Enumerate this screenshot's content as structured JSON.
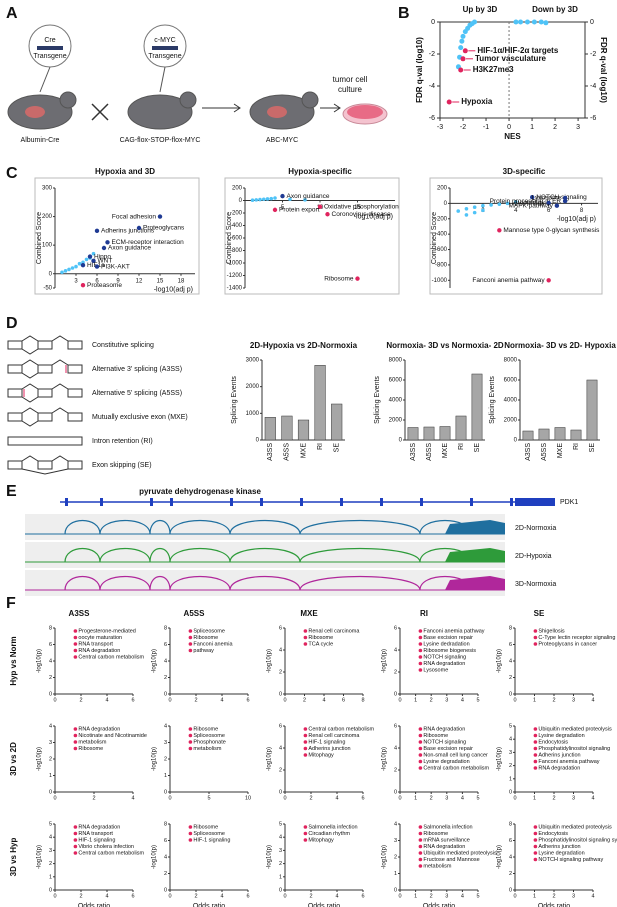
{
  "panel_a": {
    "letter": "A",
    "cre_title": "Cre",
    "cre_sub": "Transgene",
    "myc_title": "c-MYC",
    "myc_sub": "Transgene",
    "mouse1": "Albumin-Cre",
    "mouse2": "CAG-flox-STOP-flox-MYC",
    "mouse3": "ABC-MYC",
    "culture1": "tumor cell",
    "culture2": "culture"
  },
  "panel_b": {
    "letter": "B",
    "left_title": "Up by 3D",
    "right_title": "Down by 3D",
    "y_label": "FDR q-val (log10)",
    "y2_label": "FDR q-val (log10)",
    "x_label": "NES",
    "xlim": [
      -3,
      3.3
    ],
    "xticks": [
      -3,
      -2,
      -1,
      0,
      1,
      2,
      3
    ],
    "ylim": [
      -6,
      0
    ],
    "yticks": [
      0,
      -2,
      -4,
      -6
    ],
    "y2ticks": [
      0,
      -2,
      -4,
      -6
    ],
    "points_x": [
      -1.5,
      -1.6,
      -1.7,
      -1.8,
      -1.9,
      -2.0,
      -2.05,
      -2.1,
      -2.15,
      -2.2,
      0.3,
      0.5,
      0.8,
      1.1,
      1.4,
      1.6
    ],
    "points_y": [
      0,
      -0.1,
      -0.2,
      -0.4,
      -0.6,
      -0.9,
      -1.2,
      -1.6,
      -2.2,
      -2.8,
      0,
      0,
      0,
      0,
      0,
      -0.05
    ],
    "highlights": [
      {
        "label": "HIF-1α/HIF-2α targets",
        "x": -1.9,
        "y": -1.8
      },
      {
        "label": "Tumor vasculature",
        "x": -2.0,
        "y": -2.3
      },
      {
        "label": "H3K27me3",
        "x": -2.1,
        "y": -3.0
      },
      {
        "label": "Hypoxia",
        "x": -2.6,
        "y": -5.0
      }
    ]
  },
  "panel_c": {
    "letter": "C",
    "y_label": "Combined Score",
    "x_label": "-log10(adj p)",
    "plots": [
      {
        "title": "Hypoxia and 3D",
        "xlim": [
          0,
          20
        ],
        "xticks": [
          3,
          6,
          9,
          12,
          15,
          18
        ],
        "ylim": [
          -50,
          300
        ],
        "yticks": [
          -50,
          0,
          100,
          200,
          300
        ],
        "points_x": [
          1,
          1.5,
          2,
          2.5,
          3,
          3.5,
          4,
          4.5,
          5,
          5.5
        ],
        "points_y": [
          5,
          10,
          15,
          20,
          25,
          35,
          40,
          50,
          55,
          70
        ],
        "highlights": [
          {
            "label": "Focal adhesion",
            "x": 15,
            "y": 200,
            "color": "#1f3a93"
          },
          {
            "label": "Adherins junctions",
            "x": 6,
            "y": 150,
            "color": "#1f3a93"
          },
          {
            "label": "Proteoglycans",
            "x": 12,
            "y": 160,
            "color": "#1f3a93"
          },
          {
            "label": "ECM-receptor interaction",
            "x": 7.5,
            "y": 110,
            "color": "#1f3a93"
          },
          {
            "label": "Axon guidance",
            "x": 7,
            "y": 90,
            "color": "#1f3a93"
          },
          {
            "label": "Hippo",
            "x": 5,
            "y": 60,
            "color": "#1f3a93"
          },
          {
            "label": "WNT",
            "x": 5.5,
            "y": 45,
            "color": "#1f3a93"
          },
          {
            "label": "HIF1a",
            "x": 4,
            "y": 30,
            "color": "#1f3a93"
          },
          {
            "label": "PI3K-AKT",
            "x": 6,
            "y": 25,
            "color": "#1f3a93"
          },
          {
            "label": "Proteasome",
            "x": 4,
            "y": -40,
            "color": "#e0245e"
          }
        ]
      },
      {
        "title": "Hypoxia-specific",
        "xlim": [
          0,
          20
        ],
        "xticks": [
          5,
          10,
          15
        ],
        "ylim": [
          -1400,
          200
        ],
        "yticks": [
          200,
          0,
          -200,
          -400,
          -600,
          -800,
          -1000,
          -1200,
          -1400
        ],
        "points_x": [
          1,
          1.5,
          2,
          2.5,
          3,
          3.5,
          4,
          6,
          8
        ],
        "points_y": [
          5,
          10,
          15,
          20,
          25,
          30,
          40,
          20,
          10
        ],
        "highlights": [
          {
            "label": "Axon guidance",
            "x": 5,
            "y": 70,
            "color": "#1f3a93"
          },
          {
            "label": "Protein export",
            "x": 4,
            "y": -150,
            "color": "#e0245e"
          },
          {
            "label": "Oxidative phosphorylation",
            "x": 10,
            "y": -100,
            "color": "#e0245e"
          },
          {
            "label": "Coronovirus disease",
            "x": 11,
            "y": -220,
            "color": "#e0245e"
          },
          {
            "label": "Ribosome",
            "x": 15,
            "y": -1250,
            "color": "#e0245e"
          }
        ]
      },
      {
        "title": "3D-specific",
        "xlim": [
          0,
          9
        ],
        "xticks": [
          2,
          4,
          6,
          8
        ],
        "ylim": [
          -1100,
          200
        ],
        "yticks": [
          200,
          0,
          -200,
          -400,
          -600,
          -800,
          -1000
        ],
        "points_x": [
          0.5,
          1,
          1.5,
          2,
          2.5,
          3,
          3.5,
          4,
          1,
          1.5,
          2
        ],
        "points_y": [
          -100,
          -70,
          -50,
          -30,
          -20,
          -10,
          0,
          20,
          -150,
          -120,
          -90
        ],
        "highlights": [
          {
            "label": "NOTCH signaling",
            "x": 5,
            "y": 80,
            "color": "#1f3a93"
          },
          {
            "label": "Lysosome",
            "x": 7,
            "y": 70,
            "color": "#1f3a93"
          },
          {
            "label": "Protein processing in ER",
            "x": 7,
            "y": 30,
            "color": "#1f3a93"
          },
          {
            "label": "Autophagy",
            "x": 6,
            "y": 5,
            "color": "#1f3a93"
          },
          {
            "label": "MAPK pathway",
            "x": 6.5,
            "y": -30,
            "color": "#1f3a93"
          },
          {
            "label": "Mannose type 0-glycan synthesis",
            "x": 3,
            "y": -350,
            "color": "#e0245e"
          },
          {
            "label": "Fanconi anemia pathway",
            "x": 6,
            "y": -1000,
            "color": "#e0245e"
          }
        ]
      }
    ]
  },
  "panel_d": {
    "letter": "D",
    "events": [
      "Constitutive splicing",
      "Alternative 3' splicing (A3SS)",
      "Alternative 5' splicing (A5SS)",
      "Mutually exclusive exon (MXE)",
      "Intron retention (RI)",
      "Exon skipping (SE)"
    ],
    "y_label": "Splicing Events",
    "categories": [
      "A3SS",
      "A5SS",
      "MXE",
      "RI",
      "SE"
    ],
    "charts": [
      {
        "title": "2D-Hypoxia vs 2D-Normoxia",
        "ylim": [
          0,
          3000
        ],
        "yticks": [
          0,
          1000,
          2000,
          3000
        ],
        "values": [
          850,
          900,
          750,
          2800,
          1350
        ]
      },
      {
        "title": "Normoxia- 3D vs Normoxia- 2D",
        "ylim": [
          0,
          8000
        ],
        "yticks": [
          0,
          2000,
          4000,
          6000,
          8000
        ],
        "values": [
          1250,
          1300,
          1350,
          2400,
          6600
        ]
      },
      {
        "title": "Normoxia- 3D vs 2D- Hypoxia",
        "ylim": [
          0,
          8000
        ],
        "yticks": [
          0,
          2000,
          4000,
          6000,
          8000
        ],
        "values": [
          900,
          1100,
          1250,
          1000,
          6000
        ]
      }
    ],
    "color": "#a6a6a6"
  },
  "panel_e": {
    "letter": "E",
    "gene_title": "pyruvate dehydrogenase kinase",
    "gene": "PDK1",
    "tracks": [
      {
        "name": "2D-Normoxia",
        "color": "#1f6f9f"
      },
      {
        "name": "2D-Hypoxia",
        "color": "#2e9b3a"
      },
      {
        "name": "3D-Normoxia",
        "color": "#b0279b"
      }
    ]
  },
  "panel_f": {
    "letter": "F",
    "y_label": "-log10(p)",
    "x_label": "Odds ratio",
    "columns": [
      "A3SS",
      "A5SS",
      "MXE",
      "RI",
      "SE"
    ],
    "rows": [
      {
        "label": "Hyp vs Norm",
        "plots": [
          {
            "xlim": [
              0,
              6
            ],
            "xticks": [
              0,
              2,
              4,
              6
            ],
            "ylim": [
              0,
              8
            ],
            "yticks": [
              0,
              2,
              4,
              6,
              8
            ],
            "labels": [
              "Progesterone-mediated",
              "oocyte maturation",
              "RNA transport",
              "RNA degradation",
              "Central carbon metabolism"
            ]
          },
          {
            "xlim": [
              0,
              6
            ],
            "xticks": [
              0,
              2,
              4,
              6
            ],
            "ylim": [
              0,
              8
            ],
            "yticks": [
              0,
              2,
              4,
              6,
              8
            ],
            "labels": [
              "Spliceosome",
              "Ribosome",
              "Fanconi anemia",
              "pathway"
            ]
          },
          {
            "xlim": [
              0,
              8
            ],
            "xticks": [
              0,
              2,
              4,
              6,
              8
            ],
            "ylim": [
              0,
              6
            ],
            "yticks": [
              0,
              2,
              4,
              6
            ],
            "labels": [
              "Renal cell carcinoma",
              "Ribosome",
              "TCA cycle"
            ]
          },
          {
            "xlim": [
              0,
              5
            ],
            "xticks": [
              0,
              1,
              2,
              3,
              4,
              5
            ],
            "ylim": [
              0,
              6
            ],
            "yticks": [
              0,
              2,
              4,
              6
            ],
            "labels": [
              "Fanconi anemia pathway",
              "Base excision repair",
              "Lysine dedradation",
              "Ribosome biogenesis",
              "NOTCH signaling",
              "RNA degradation",
              "Lysosome"
            ]
          },
          {
            "xlim": [
              0,
              4
            ],
            "xticks": [
              0,
              1,
              2,
              3,
              4
            ],
            "ylim": [
              0,
              8
            ],
            "yticks": [
              0,
              2,
              4,
              6,
              8
            ],
            "labels": [
              "Shigellosis",
              "C-Type lectin receptor signaling",
              "Proteoglycans in cancer"
            ]
          }
        ]
      },
      {
        "label": "3D vs 2D",
        "plots": [
          {
            "xlim": [
              0,
              4
            ],
            "xticks": [
              0,
              2,
              4
            ],
            "ylim": [
              0,
              4
            ],
            "yticks": [
              0,
              1,
              2,
              3,
              4
            ],
            "labels": [
              "RNA degradation",
              "Nicotinate and Nicotinamide",
              "metabolism",
              "Ribosome"
            ]
          },
          {
            "xlim": [
              0,
              10
            ],
            "xticks": [
              0,
              5,
              10
            ],
            "ylim": [
              0,
              4
            ],
            "yticks": [
              0,
              1,
              2,
              3,
              4
            ],
            "labels": [
              "Ribosome",
              "Spliceosome",
              "Phosphonate",
              "metabolism"
            ]
          },
          {
            "xlim": [
              0,
              6
            ],
            "xticks": [
              0,
              2,
              4,
              6
            ],
            "ylim": [
              0,
              6
            ],
            "yticks": [
              0,
              2,
              4,
              6
            ],
            "labels": [
              "Central carbon metabolism",
              "Renal cell carcinoma",
              "HIF-1 signaling",
              "Adherins junction",
              "Mitophagy"
            ]
          },
          {
            "xlim": [
              0,
              5
            ],
            "xticks": [
              0,
              1,
              2,
              3,
              4,
              5
            ],
            "ylim": [
              0,
              6
            ],
            "yticks": [
              0,
              2,
              4,
              6
            ],
            "labels": [
              "RNA degradation",
              "Ribosome",
              "NOTCH signaling",
              "Base excision repair",
              "Non-small cell lung cancer",
              "Lysine degradation",
              "Central carbon metabolism"
            ]
          },
          {
            "xlim": [
              0,
              4
            ],
            "xticks": [
              0,
              1,
              2,
              3,
              4
            ],
            "ylim": [
              0,
              5
            ],
            "yticks": [
              0,
              1,
              2,
              3,
              4,
              5
            ],
            "labels": [
              "Ubiquitin mediated proteolysis",
              "Lysine degradation",
              "Endocytosis",
              "Phosphatidylinositol signaling",
              "Adherins junction",
              "Fanconi anemia pathway",
              "RNA degradation"
            ]
          }
        ]
      },
      {
        "label": "3D vs Hyp",
        "plots": [
          {
            "xlim": [
              0,
              6
            ],
            "xticks": [
              0,
              2,
              4,
              6
            ],
            "ylim": [
              0,
              5
            ],
            "yticks": [
              0,
              1,
              2,
              3,
              4,
              5
            ],
            "labels": [
              "RNA degradation",
              "RNA transport",
              "HIF-1 signaling",
              "Vibrio cholera infection",
              "Central carbon metabolism"
            ]
          },
          {
            "xlim": [
              0,
              6
            ],
            "xticks": [
              0,
              2,
              4,
              6
            ],
            "ylim": [
              0,
              8
            ],
            "yticks": [
              0,
              2,
              4,
              6,
              8
            ],
            "labels": [
              "Ribosome",
              "Spliceosome",
              "HIF-1 signaling"
            ]
          },
          {
            "xlim": [
              0,
              6
            ],
            "xticks": [
              0,
              2,
              4,
              6
            ],
            "ylim": [
              0,
              5
            ],
            "yticks": [
              0,
              1,
              2,
              3,
              4,
              5
            ],
            "labels": [
              "Salmonella infection",
              "Circadian rhythm",
              "Mitophagy"
            ]
          },
          {
            "xlim": [
              0,
              5
            ],
            "xticks": [
              0,
              1,
              2,
              3,
              4,
              5
            ],
            "ylim": [
              0,
              4
            ],
            "yticks": [
              0,
              1,
              2,
              3,
              4
            ],
            "labels": [
              "Salmonella infection",
              "Ribosome",
              "mRNA surveillance",
              "RNA degradation",
              "Ubiquitin mediated proteolysis",
              "Fructose and Mannose",
              "metabolism"
            ]
          },
          {
            "xlim": [
              0,
              4
            ],
            "xticks": [
              0,
              1,
              2,
              3,
              4
            ],
            "ylim": [
              0,
              8
            ],
            "yticks": [
              0,
              2,
              4,
              6,
              8
            ],
            "labels": [
              "Ubiquitin mediated proteolysis",
              "Endocytosis",
              "Phosphatidylinositol signaling system",
              "Adherins junction",
              "Lysine degradation",
              "NOTCH signaling pathway"
            ]
          }
        ]
      }
    ]
  }
}
